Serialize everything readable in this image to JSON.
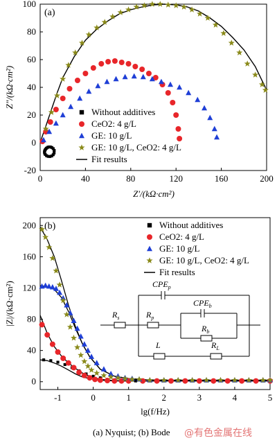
{
  "colors": {
    "without": "#000000",
    "ceo2": "#e8262a",
    "ge": "#1f3fd6",
    "ge_ceo2": "#8a8a1a",
    "fit": "#000000"
  },
  "caption": "(a) Nyquist; (b) Bode",
  "watermark": "@有色金属在线",
  "chart_data": [
    {
      "type": "scatter",
      "panel_label": "(a)",
      "xlabel": "Z′/(kΩ·cm²)",
      "ylabel": "Z″/(kΩ·cm²)",
      "xlim": [
        0,
        200
      ],
      "ylim": [
        -20,
        100
      ],
      "xticks": [
        0,
        40,
        80,
        120,
        160,
        200
      ],
      "yticks": [
        -20,
        0,
        20,
        40,
        60,
        80,
        100
      ],
      "legend_position": "lower-left",
      "series": [
        {
          "name": "Without additives",
          "marker": "square",
          "color_key": "without",
          "x": [
            12.4,
            11.5,
            10.3,
            9.0,
            7.7,
            6.6,
            5.6,
            4.8,
            4.2,
            3.8,
            3.9,
            4.5,
            5.6,
            7.0,
            8.6,
            10.2,
            11.5,
            12.3
          ],
          "y": [
            -5.5,
            -4.2,
            -3.4,
            -3.0,
            -3.0,
            -3.3,
            -3.9,
            -4.6,
            -5.4,
            -6.4,
            -7.4,
            -8.4,
            -9.3,
            -9.8,
            -9.9,
            -9.5,
            -8.6,
            -7.4
          ]
        },
        {
          "name": "CeO2: 4 g/L",
          "marker": "circle",
          "color_key": "ceo2",
          "x": [
            2,
            5,
            9,
            14,
            20,
            26,
            33,
            40,
            47,
            54,
            60,
            66,
            72,
            78,
            84,
            90,
            96,
            102,
            108,
            113,
            117,
            120,
            122,
            123
          ],
          "y": [
            1,
            8,
            15,
            24,
            32,
            39,
            45,
            50,
            54,
            57,
            58.5,
            59,
            58,
            57,
            55,
            53,
            50,
            47,
            42,
            36,
            29,
            20,
            10,
            3
          ]
        },
        {
          "name": "GE: 10 g/L",
          "marker": "triangle",
          "color_key": "ge",
          "x": [
            3,
            8,
            14,
            20,
            27,
            35,
            43,
            51,
            59,
            67,
            75,
            83,
            91,
            99,
            107,
            115,
            123,
            131,
            139,
            145,
            150,
            154,
            156
          ],
          "y": [
            2,
            8,
            14,
            20,
            26,
            32,
            37,
            41,
            44,
            46,
            47.5,
            48,
            47.5,
            46,
            44,
            42,
            40,
            36,
            31,
            25,
            18,
            10,
            4
          ]
        },
        {
          "name": "GE: 10 g/L, CeO2: 4 g/L",
          "marker": "star",
          "color_key": "ge_ceo2",
          "x": [
            5,
            10,
            15,
            20,
            25,
            31,
            37,
            43,
            50,
            57,
            64,
            71,
            78,
            85,
            92,
            99,
            106,
            113,
            120,
            127,
            134,
            141,
            148,
            155,
            162,
            169,
            176,
            183,
            190,
            196,
            199
          ],
          "y": [
            10,
            22,
            34,
            46,
            56,
            65,
            72,
            78,
            83,
            87,
            91,
            94,
            96,
            98,
            99,
            100,
            100,
            99.5,
            99,
            98,
            96,
            93,
            90,
            85,
            79,
            72,
            65,
            57,
            49,
            42,
            38
          ]
        },
        {
          "name": "Fit results",
          "line": true,
          "color_key": "fit",
          "x": [
            0,
            2,
            5,
            10,
            15,
            20,
            30,
            40,
            50,
            60,
            70,
            80,
            90,
            100,
            110,
            120,
            130,
            140,
            150,
            160,
            170,
            180,
            190,
            200
          ],
          "y": [
            0,
            5,
            12,
            24,
            36,
            47,
            62,
            74,
            82,
            88,
            93,
            96,
            98,
            99.5,
            100,
            99.5,
            98,
            95,
            90,
            84,
            76,
            67,
            55,
            38
          ]
        }
      ]
    },
    {
      "type": "scatter",
      "panel_label": "(b)",
      "xlabel": "lg(f/Hz)",
      "ylabel": "|Z|/(kΩ·cm²)",
      "xlim": [
        -1.5,
        5
      ],
      "ylim": [
        -10,
        210
      ],
      "xticks": [
        -1,
        0,
        1,
        2,
        3,
        4,
        5
      ],
      "yticks": [
        0,
        40,
        80,
        120,
        160,
        200
      ],
      "legend_position": "top-right",
      "series": [
        {
          "name": "Without additives",
          "marker": "square",
          "color_key": "without",
          "x": [
            -1.4,
            -1.2,
            -1.0,
            -0.8,
            -0.6,
            -0.4,
            -0.2,
            0,
            0.2,
            0.4,
            0.6,
            0.8,
            1.0,
            1.2,
            1.4,
            1.6,
            1.8,
            2.0,
            2.2,
            2.4,
            2.6,
            2.8,
            3.0,
            3.2,
            3.4,
            3.6,
            3.8,
            4.0,
            4.2,
            4.4,
            4.6,
            4.8,
            5.0
          ],
          "y": [
            28,
            27,
            25,
            22,
            18,
            14,
            10,
            7,
            5,
            3,
            2,
            1.5,
            1,
            1,
            1,
            1,
            1,
            1,
            1,
            1,
            1,
            1,
            1,
            1,
            1,
            1,
            1,
            1,
            1,
            1,
            1,
            1,
            1
          ]
        },
        {
          "name": "CeO2: 4 g/L",
          "marker": "circle",
          "color_key": "ceo2",
          "x": [
            -1.45,
            -1.3,
            -1.15,
            -1.0,
            -0.85,
            -0.7,
            -0.55,
            -0.4,
            -0.25,
            -0.1,
            0.05,
            0.2,
            0.4,
            0.6,
            0.8,
            1.0,
            1.4,
            1.8,
            2.2,
            2.6,
            3.0,
            3.4,
            3.8,
            4.2,
            4.6,
            5.0
          ],
          "y": [
            73,
            60,
            48,
            38,
            30,
            24,
            18,
            12,
            8,
            5,
            3,
            2,
            1.5,
            1,
            1,
            1,
            1,
            1,
            1,
            1,
            1,
            1,
            1,
            1,
            1,
            1
          ]
        },
        {
          "name": "GE: 10 g/L",
          "marker": "triangle",
          "color_key": "ge",
          "x": [
            -1.45,
            -1.35,
            -1.25,
            -1.15,
            -1.05,
            -0.95,
            -0.85,
            -0.75,
            -0.65,
            -0.55,
            -0.45,
            -0.35,
            -0.25,
            -0.15,
            -0.05,
            0.1,
            0.3,
            0.5,
            0.7,
            0.9,
            1.1,
            1.3,
            1.6,
            2.0,
            2.4,
            2.8,
            3.2,
            3.6,
            4.0,
            4.4,
            4.8,
            5.0
          ],
          "y": [
            122,
            123,
            122,
            121,
            119,
            114,
            107,
            98,
            88,
            78,
            68,
            58,
            48,
            40,
            32,
            24,
            16,
            10,
            7,
            5,
            4,
            3,
            2,
            2,
            2,
            2,
            2,
            2,
            2,
            2,
            2,
            2
          ]
        },
        {
          "name": "GE: 10 g/L, CeO2: 4 g/L",
          "marker": "star",
          "color_key": "ge_ceo2",
          "x": [
            -1.45,
            -1.35,
            -1.25,
            -1.15,
            -1.05,
            -0.95,
            -0.85,
            -0.75,
            -0.65,
            -0.55,
            -0.45,
            -0.35,
            -0.25,
            -0.15,
            -0.05,
            0.1,
            0.3,
            0.5,
            0.7,
            0.9,
            1.1,
            1.3,
            1.6,
            2.0,
            2.4,
            2.8,
            3.2,
            3.6,
            4.0,
            4.4,
            4.8,
            5.0
          ],
          "y": [
            195,
            185,
            172,
            158,
            142,
            124,
            104,
            86,
            70,
            56,
            44,
            34,
            26,
            20,
            15,
            11,
            8,
            6,
            5,
            4,
            3,
            3,
            2,
            2,
            2,
            2,
            2,
            2,
            2,
            2,
            2,
            2
          ]
        }
      ],
      "fit_curves": [
        {
          "name": "Fit results",
          "x": [
            -1.5,
            -1.3,
            -1.1,
            -0.9,
            -0.7,
            -0.5,
            -0.3,
            -0.1,
            0.2,
            0.6,
            1.0,
            1.5,
            2,
            3,
            4,
            5
          ],
          "y": [
            28,
            27,
            24,
            20,
            15,
            10,
            6,
            4,
            2,
            1,
            1,
            1,
            1,
            1,
            1,
            1
          ]
        },
        {
          "x": [
            -1.5,
            -1.3,
            -1.1,
            -0.9,
            -0.7,
            -0.5,
            -0.3,
            -0.1,
            0.2,
            0.6,
            1.0,
            1.5,
            2,
            3,
            4,
            5
          ],
          "y": [
            85,
            62,
            45,
            33,
            24,
            17,
            11,
            7,
            3,
            1.5,
            1,
            1,
            1,
            1,
            1,
            1
          ]
        },
        {
          "x": [
            -1.5,
            -1.3,
            -1.1,
            -0.9,
            -0.7,
            -0.5,
            -0.3,
            -0.1,
            0.2,
            0.6,
            1.0,
            1.5,
            2,
            3,
            4,
            5
          ],
          "y": [
            123,
            122,
            118,
            108,
            90,
            68,
            48,
            32,
            16,
            7,
            4,
            2.5,
            2,
            2,
            2,
            2
          ]
        },
        {
          "x": [
            -1.5,
            -1.3,
            -1.1,
            -0.9,
            -0.7,
            -0.5,
            -0.3,
            -0.1,
            0.2,
            0.6,
            1.0,
            1.5,
            2,
            3,
            4,
            5
          ],
          "y": [
            198,
            182,
            160,
            130,
            98,
            70,
            48,
            32,
            16,
            7,
            4,
            2.5,
            2,
            2,
            2,
            2
          ]
        }
      ],
      "circuit_labels": {
        "rs": "R",
        "rs_sub": "s",
        "rp": "R",
        "rp_sub": "p",
        "cpep": "CPE",
        "cpep_sub": "p",
        "cpeb": "CPE",
        "cpeb_sub": "b",
        "rb": "R",
        "rb_sub": "b",
        "l": "L",
        "rl": "R",
        "rl_sub": "L"
      }
    }
  ]
}
